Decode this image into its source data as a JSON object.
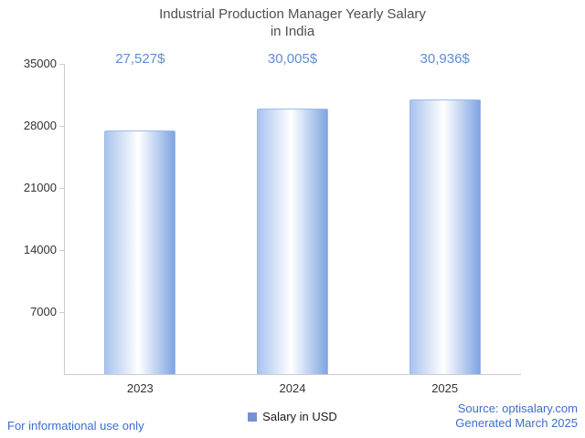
{
  "title": {
    "line1": "Industrial Production Manager Yearly Salary",
    "line2": "in India"
  },
  "chart_data": {
    "type": "bar",
    "title": "Industrial Production Manager Yearly Salary in India",
    "categories": [
      "2023",
      "2024",
      "2025"
    ],
    "values": [
      27527,
      30005,
      30936
    ],
    "value_labels": [
      "27,527$",
      "30,005$",
      "30,936$"
    ],
    "xlabel": "",
    "ylabel": "",
    "ylim": [
      0,
      35000
    ],
    "yticks": [
      7000,
      14000,
      21000,
      28000,
      35000
    ],
    "grid": false,
    "legend": {
      "label": "Salary in USD",
      "position": "bottom"
    }
  },
  "colors": {
    "title": "#4f4f4f",
    "value_label": "#5b8dd9",
    "tick_label": "#333333",
    "axis": "#cccccc",
    "bar_gradient_left": "#a9c3ee",
    "bar_gradient_mid": "#ffffff",
    "bar_gradient_right": "#7fa5e2",
    "bar_border": "#9db9ea",
    "legend_swatch": "#7591d1",
    "footer": "#3d6dcc"
  },
  "footer": {
    "left": "For informational use only",
    "source": "Source: optisalary.com",
    "generated": "Generated March 2025"
  }
}
